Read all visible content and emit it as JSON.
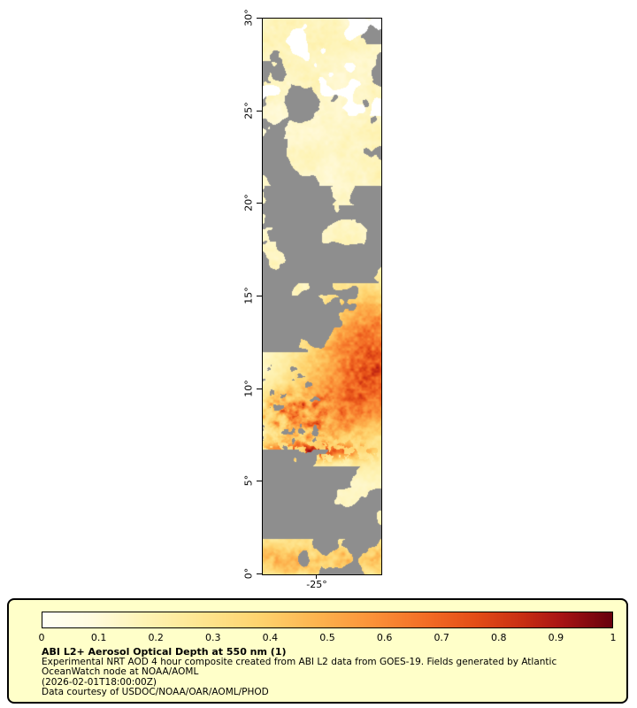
{
  "map": {
    "y_tick_labels": [
      "30°",
      "25°",
      "20°",
      "15°",
      "10°",
      "5°",
      "0°"
    ],
    "x_tick_label": "-25°",
    "nodata_color": "#8e8e8e",
    "background_color": "#ffffff"
  },
  "colorbar": {
    "min": 0,
    "max": 1,
    "tick_labels": [
      "0",
      "0.1",
      "0.2",
      "0.3",
      "0.4",
      "0.5",
      "0.6",
      "0.7",
      "0.8",
      "0.9",
      "1"
    ],
    "stops": [
      {
        "t": 0.0,
        "color": "#fffff5"
      },
      {
        "t": 0.08,
        "color": "#fffbe1"
      },
      {
        "t": 0.18,
        "color": "#fef3b4"
      },
      {
        "t": 0.28,
        "color": "#fee58f"
      },
      {
        "t": 0.38,
        "color": "#fed36e"
      },
      {
        "t": 0.48,
        "color": "#fdb44f"
      },
      {
        "t": 0.58,
        "color": "#fb9138"
      },
      {
        "t": 0.68,
        "color": "#f26a24"
      },
      {
        "t": 0.76,
        "color": "#e34d17"
      },
      {
        "t": 0.84,
        "color": "#c92f13"
      },
      {
        "t": 0.91,
        "color": "#a81414"
      },
      {
        "t": 1.0,
        "color": "#67000d"
      }
    ]
  },
  "legend": {
    "title": "ABI L2+ Aerosol Optical Depth at 550 nm (1)",
    "description_line1": "Experimental NRT AOD 4 hour composite created from ABI L2 data from GOES-19. Fields generated by Atlantic",
    "description_line2": "OceanWatch node at NOAA/AOML",
    "timestamp_line": "(2026-02-01T18:00:00Z)",
    "credit_line": "Data courtesy of USDOC/NOAA/OAR/AOML/PHOD",
    "background": "#ffffc9",
    "border_color": "#000000"
  },
  "chart_data": {
    "type": "heatmap",
    "title": "ABI L2+ Aerosol Optical Depth at 550 nm (1)",
    "value_name": "Aerosol Optical Depth at 550 nm",
    "value_range": [
      0,
      1
    ],
    "colorbar_ticks": [
      0,
      0.1,
      0.2,
      0.3,
      0.4,
      0.5,
      0.6,
      0.7,
      0.8,
      0.9,
      1
    ],
    "y_axis": {
      "ticks_deg_latitude": [
        0,
        5,
        10,
        15,
        20,
        25,
        30
      ]
    },
    "x_axis": {
      "ticks_deg_longitude": [
        -25
      ]
    },
    "legend_position": "bottom",
    "no_data_meaning": "gray = cloud / no retrieval",
    "regions": [
      {
        "lat_range": [
          22,
          30
        ],
        "aod": "0.05-0.25 pale yellow with scattered gray no-data patches"
      },
      {
        "lat_range": [
          15,
          22
        ],
        "aod": "large gray no-data cloud region with pale yellow streaks"
      },
      {
        "lat_range": [
          12,
          15
        ],
        "aod": "0.2-0.4 increasing southward, gray patches to the west"
      },
      {
        "lat_range": [
          7,
          12
        ],
        "aod": "0.5-1.0 dust plume: speckled deep red west, smooth orange east"
      },
      {
        "lat_range": [
          1.5,
          6
        ],
        "aod": "mostly gray no-data cloud region"
      },
      {
        "lat_range": [
          0,
          1.5
        ],
        "aod": "0.15-0.45 speckled yellow-orange band"
      }
    ]
  }
}
